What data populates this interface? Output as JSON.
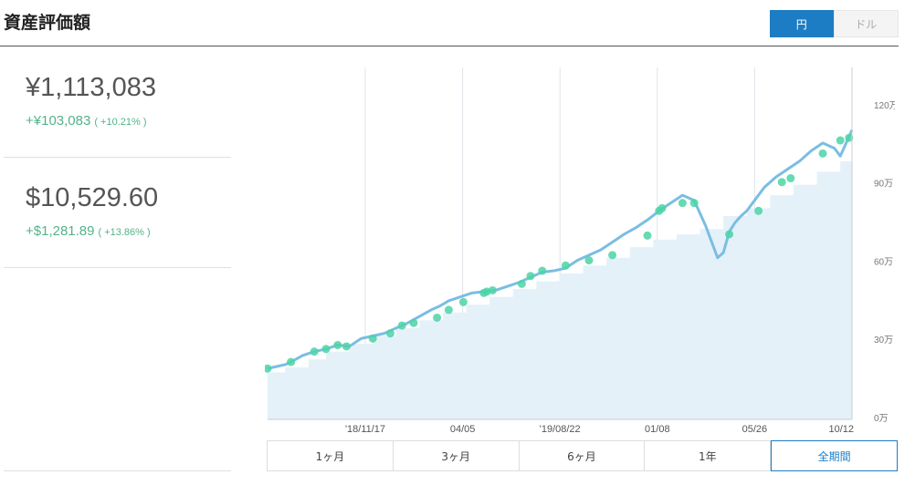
{
  "header": {
    "title": "資産評価額"
  },
  "currency_toggle": {
    "yen_label": "円",
    "usd_label": "ドル",
    "selected": "円"
  },
  "summary": {
    "jpy": {
      "value": "¥1,113,083",
      "change": "+¥103,083",
      "percent": "( +10.21% )"
    },
    "usd": {
      "value": "$10,529.60",
      "change": "+$1,281.89",
      "percent": "( +13.86% )"
    }
  },
  "periods": {
    "selected": "全期間",
    "items": [
      "1ヶ月",
      "3ヶ月",
      "6ヶ月",
      "1年",
      "全期間"
    ]
  },
  "chart_data": {
    "type": "area",
    "x_tick_labels": [
      "'18/11/17",
      "04/05",
      "'19/08/22",
      "01/08",
      "05/26",
      "10/12"
    ],
    "y_tick_labels": [
      "0万",
      "30万",
      "60万",
      "90万",
      "120万"
    ],
    "y_ticks": [
      0,
      30,
      60,
      90,
      120
    ],
    "ylim": [
      0,
      135
    ],
    "xlim": [
      0,
      100
    ],
    "grid": true,
    "colors": {
      "value_line": "#7bbde3",
      "invested_area": "#e4f1f9",
      "deposit_marker": "#4cd3a6",
      "toggle_active": "#1d7dc4",
      "positive_change": "#52b388"
    },
    "series": [
      {
        "x": [
          0,
          3,
          4,
          6,
          8,
          10,
          12,
          14,
          16,
          18,
          20,
          22,
          24,
          26,
          28,
          29.5,
          31,
          33,
          35,
          37,
          39,
          41,
          43,
          45,
          47,
          49,
          51,
          53,
          55,
          57,
          59,
          61,
          63,
          65,
          67,
          69,
          71,
          73,
          75,
          77,
          78,
          79,
          80,
          81,
          82,
          83,
          85,
          87,
          89,
          91,
          93,
          95,
          97,
          98,
          99,
          100
        ],
        "values": [
          19.5,
          21,
          22,
          24.5,
          26,
          27,
          28.5,
          28,
          31,
          32,
          33,
          35,
          37,
          39.5,
          42,
          43.5,
          45.5,
          47,
          48.5,
          49,
          49.5,
          51,
          52.5,
          54.5,
          56.5,
          57,
          58,
          61,
          63,
          65,
          68,
          71,
          73.5,
          76.5,
          80,
          83,
          86,
          84,
          74,
          62,
          64,
          72,
          75.5,
          78,
          80,
          83,
          89,
          93,
          96,
          99,
          103,
          106,
          104,
          101,
          106,
          111
        ]
      },
      {
        "x": [
          0,
          3,
          7,
          10,
          14,
          18,
          22,
          26,
          30,
          34,
          38,
          42,
          46,
          50,
          54,
          58,
          62,
          66,
          70,
          74,
          78,
          82,
          86,
          90,
          94,
          98,
          100
        ],
        "values": [
          18,
          20,
          23,
          26,
          29,
          32,
          35,
          38,
          41,
          44,
          47,
          50,
          53,
          56,
          59,
          62,
          66,
          69,
          71,
          73,
          78,
          81,
          86,
          90,
          95,
          99,
          102
        ]
      }
    ],
    "deposit_markers": {
      "x": [
        0,
        4,
        8,
        10,
        12,
        13.5,
        18,
        21,
        23,
        25,
        29,
        31,
        33.5,
        37,
        37.5,
        38.5,
        43.5,
        45,
        47,
        51,
        55,
        59,
        65,
        67,
        67.5,
        71,
        73,
        79,
        84,
        88,
        89.5,
        95,
        98,
        99.5
      ],
      "values": [
        19.5,
        22,
        26,
        27,
        28.5,
        28,
        31,
        33,
        36,
        37,
        39,
        42,
        45,
        48.5,
        49,
        49.5,
        52,
        55,
        57,
        59,
        61,
        63,
        70.5,
        80,
        81,
        83,
        83,
        71,
        80,
        91,
        92.5,
        102,
        107,
        108
      ]
    }
  }
}
